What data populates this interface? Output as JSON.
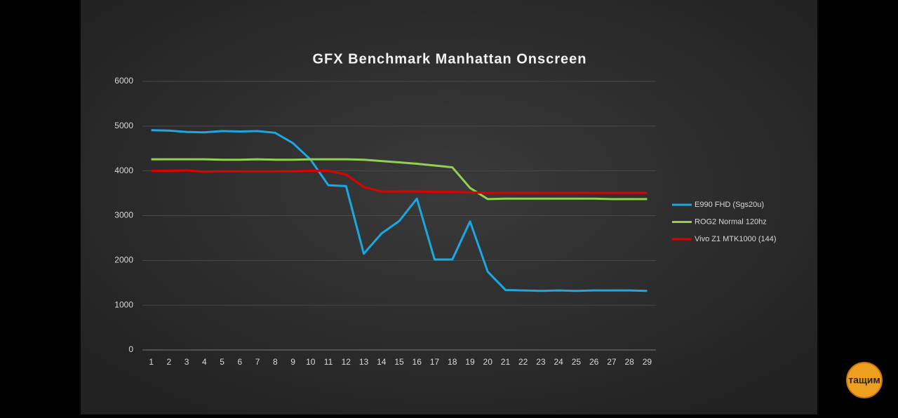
{
  "chart_data": {
    "type": "line",
    "title": "GFX Benchmark Manhattan Onscreen",
    "categories": [
      "1",
      "2",
      "3",
      "4",
      "5",
      "6",
      "7",
      "8",
      "9",
      "10",
      "11",
      "12",
      "13",
      "14",
      "15",
      "16",
      "17",
      "18",
      "19",
      "20",
      "21",
      "22",
      "23",
      "24",
      "25",
      "26",
      "27",
      "28",
      "29"
    ],
    "series": [
      {
        "name": "E990 FHD (Sgs20u)",
        "color": "#1ba8e2",
        "values": [
          4910,
          4900,
          4870,
          4860,
          4890,
          4880,
          4890,
          4850,
          4620,
          4250,
          3680,
          3660,
          2150,
          2600,
          2880,
          3380,
          2020,
          2020,
          2870,
          1750,
          1340,
          1330,
          1320,
          1330,
          1320,
          1330,
          1330,
          1330,
          1320
        ]
      },
      {
        "name": "ROG2 Normal 120hz",
        "color": "#92d050",
        "values": [
          4260,
          4260,
          4260,
          4260,
          4250,
          4250,
          4260,
          4250,
          4250,
          4260,
          4260,
          4260,
          4250,
          4220,
          4190,
          4160,
          4120,
          4080,
          3620,
          3370,
          3380,
          3380,
          3380,
          3380,
          3380,
          3380,
          3370,
          3370,
          3370
        ]
      },
      {
        "name": "Vivo Z1 MTK1000 (144)",
        "color": "#e00000",
        "values": [
          4000,
          4000,
          4010,
          3980,
          3990,
          3990,
          3990,
          3990,
          3990,
          4000,
          4000,
          3920,
          3640,
          3540,
          3540,
          3540,
          3530,
          3530,
          3520,
          3510,
          3510,
          3510,
          3510,
          3510,
          3510,
          3510,
          3510,
          3510,
          3510
        ]
      }
    ],
    "ylim": [
      0,
      6000
    ],
    "yticks": [
      0,
      1000,
      2000,
      3000,
      4000,
      5000,
      6000
    ],
    "grid": true,
    "legend": "right"
  },
  "watermark": "тащим"
}
